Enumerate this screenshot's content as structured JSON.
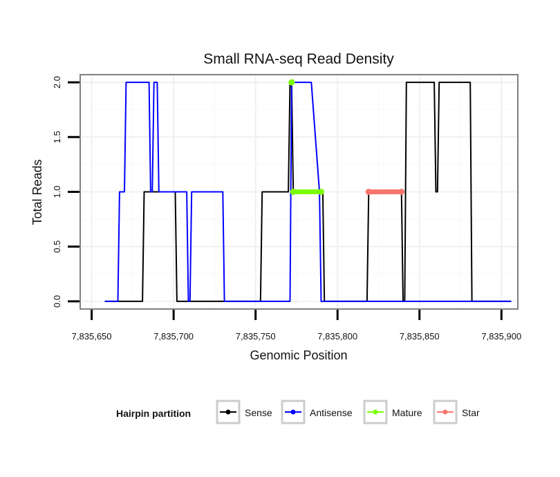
{
  "chart_data": {
    "type": "line",
    "title": "Small RNA-seq Read Density",
    "xlabel": "Genomic Position",
    "ylabel": "Total Reads",
    "xlim": [
      7835643,
      7835910
    ],
    "ylim": [
      -0.07,
      2.07
    ],
    "x_ticks": [
      7835650,
      7835700,
      7835750,
      7835800,
      7835850,
      7835900
    ],
    "x_tick_labels": [
      "7,835,650",
      "7,835,700",
      "7,835,750",
      "7,835,800",
      "7,835,850",
      "7,835,900"
    ],
    "y_ticks": [
      0,
      0.5,
      1,
      1.5,
      2
    ],
    "y_tick_labels": [
      "0.0",
      "0.5",
      "1.0",
      "1.5",
      "2.0"
    ],
    "legend": {
      "title": "Hairpin partition",
      "placement": "bottom",
      "entries": [
        "Sense",
        "Antisense",
        "Mature",
        "Star"
      ]
    },
    "series": [
      {
        "name": "Sense",
        "color": "#000000",
        "x": [
          7835658,
          7835681,
          7835682,
          7835701,
          7835702,
          7835753,
          7835754,
          7835770,
          7835771,
          7835772,
          7835773,
          7835791,
          7835792,
          7835818,
          7835819,
          7835839,
          7835840,
          7835841,
          7835842,
          7835859,
          7835860,
          7835861,
          7835862,
          7835881,
          7835882,
          7835906
        ],
        "y": [
          0,
          0,
          1,
          1,
          0,
          0,
          1,
          1,
          2,
          2,
          1,
          1,
          0,
          0,
          1,
          1,
          0,
          0,
          2,
          2,
          1,
          1,
          2,
          2,
          0,
          0
        ]
      },
      {
        "name": "Antisense",
        "color": "#0000ff",
        "x": [
          7835658,
          7835666,
          7835667,
          7835670,
          7835671,
          7835685,
          7835686,
          7835687,
          7835688,
          7835690,
          7835691,
          7835694,
          7835695,
          7835708,
          7835709,
          7835710,
          7835711,
          7835730,
          7835731,
          7835771,
          7835772,
          7835783,
          7835784,
          7835789,
          7835790,
          7835906
        ],
        "y": [
          0,
          0,
          1,
          1,
          2,
          2,
          1,
          1,
          2,
          2,
          1,
          1,
          1,
          1,
          0,
          0,
          1,
          1,
          0,
          0,
          2,
          2,
          2,
          1,
          0,
          0
        ]
      },
      {
        "name": "Mature",
        "color": "#7cfc00",
        "segments": [
          {
            "x": [
              7835772,
              7835772
            ],
            "y": [
              2,
              2
            ]
          },
          {
            "x": [
              7835773,
              7835790
            ],
            "y": [
              1,
              1
            ]
          }
        ]
      },
      {
        "name": "Star",
        "color": "#f8766d",
        "segments": [
          {
            "x": [
              7835819,
              7835839
            ],
            "y": [
              1,
              1
            ]
          }
        ]
      }
    ]
  }
}
